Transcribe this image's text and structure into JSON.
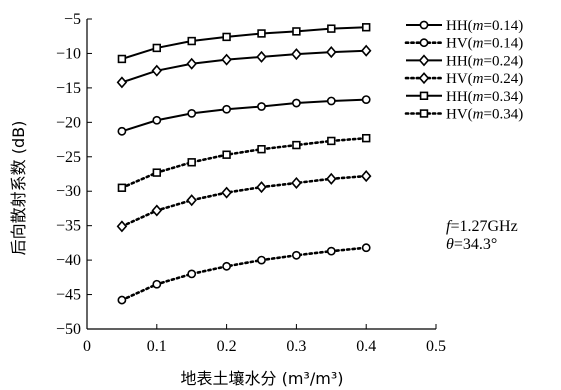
{
  "chart_data": {
    "type": "line",
    "xlabel": "地表土壤水分 (m³/m³)",
    "ylabel": "后向散射系数 (dB)",
    "xlim": [
      0,
      0.5
    ],
    "ylim": [
      -50,
      -5
    ],
    "x_ticks": [
      "0",
      "0.1",
      "0.2",
      "0.3",
      "0.4",
      "0.5"
    ],
    "y_ticks": [
      "−5",
      "−10",
      "−15",
      "−20",
      "−25",
      "−30",
      "−35",
      "−40",
      "−45",
      "−50"
    ],
    "x": [
      0.05,
      0.1,
      0.15,
      0.2,
      0.25,
      0.3,
      0.35,
      0.4
    ],
    "legend_position": "top-right",
    "series": [
      {
        "name": "HH(m=0.14)",
        "pol": "HH",
        "m": "0.14",
        "marker": "circle",
        "style": "solid",
        "values": [
          -21.3,
          -19.7,
          -18.7,
          -18.1,
          -17.7,
          -17.2,
          -16.9,
          -16.7
        ]
      },
      {
        "name": "HV(m=0.14)",
        "pol": "HV",
        "m": "0.14",
        "marker": "circle",
        "style": "dotted",
        "values": [
          -45.8,
          -43.5,
          -42.0,
          -40.9,
          -40.0,
          -39.3,
          -38.7,
          -38.2
        ]
      },
      {
        "name": "HH(m=0.24)",
        "pol": "HH",
        "m": "0.24",
        "marker": "diamond",
        "style": "solid",
        "values": [
          -14.2,
          -12.5,
          -11.5,
          -10.9,
          -10.5,
          -10.1,
          -9.8,
          -9.6
        ]
      },
      {
        "name": "HV(m=0.24)",
        "pol": "HV",
        "m": "0.24",
        "marker": "diamond",
        "style": "dotted",
        "values": [
          -35.1,
          -32.8,
          -31.3,
          -30.2,
          -29.4,
          -28.8,
          -28.2,
          -27.8
        ]
      },
      {
        "name": "HH(m=0.34)",
        "pol": "HH",
        "m": "0.34",
        "marker": "square",
        "style": "solid",
        "values": [
          -10.8,
          -9.2,
          -8.2,
          -7.6,
          -7.1,
          -6.8,
          -6.4,
          -6.2
        ]
      },
      {
        "name": "HV(m=0.34)",
        "pol": "HV",
        "m": "0.34",
        "marker": "square",
        "style": "dotted",
        "values": [
          -29.5,
          -27.3,
          -25.8,
          -24.7,
          -23.9,
          -23.3,
          -22.7,
          -22.3
        ]
      }
    ],
    "annotations": {
      "f_symbol": "f",
      "f_value": "=1.27GHz",
      "theta_symbol": "θ",
      "theta_value": "=34.3°"
    }
  }
}
